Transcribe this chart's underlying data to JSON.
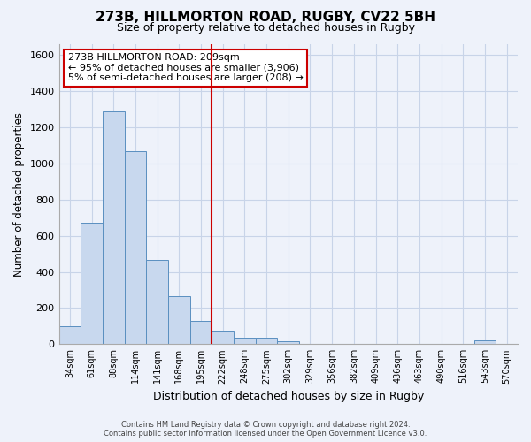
{
  "title": "273B, HILLMORTON ROAD, RUGBY, CV22 5BH",
  "subtitle": "Size of property relative to detached houses in Rugby",
  "xlabel": "Distribution of detached houses by size in Rugby",
  "ylabel": "Number of detached properties",
  "bar_labels": [
    "34sqm",
    "61sqm",
    "88sqm",
    "114sqm",
    "141sqm",
    "168sqm",
    "195sqm",
    "222sqm",
    "248sqm",
    "275sqm",
    "302sqm",
    "329sqm",
    "356sqm",
    "382sqm",
    "409sqm",
    "436sqm",
    "463sqm",
    "490sqm",
    "516sqm",
    "543sqm",
    "570sqm"
  ],
  "bar_heights": [
    100,
    670,
    1290,
    1070,
    465,
    265,
    130,
    70,
    35,
    35,
    15,
    0,
    0,
    0,
    0,
    0,
    0,
    0,
    0,
    20,
    0
  ],
  "bar_color": "#c8d8ee",
  "bar_edge_color": "#5a8fc0",
  "vline_x": 6.5,
  "vline_color": "#cc0000",
  "ylim": [
    0,
    1660
  ],
  "yticks": [
    0,
    200,
    400,
    600,
    800,
    1000,
    1200,
    1400,
    1600
  ],
  "annotation_title": "273B HILLMORTON ROAD: 209sqm",
  "annotation_line1": "← 95% of detached houses are smaller (3,906)",
  "annotation_line2": "5% of semi-detached houses are larger (208) →",
  "annotation_box_color": "#ffffff",
  "annotation_box_edge": "#cc0000",
  "footer1": "Contains HM Land Registry data © Crown copyright and database right 2024.",
  "footer2": "Contains public sector information licensed under the Open Government Licence v3.0.",
  "grid_color": "#c8d4e8",
  "background_color": "#eef2fa"
}
